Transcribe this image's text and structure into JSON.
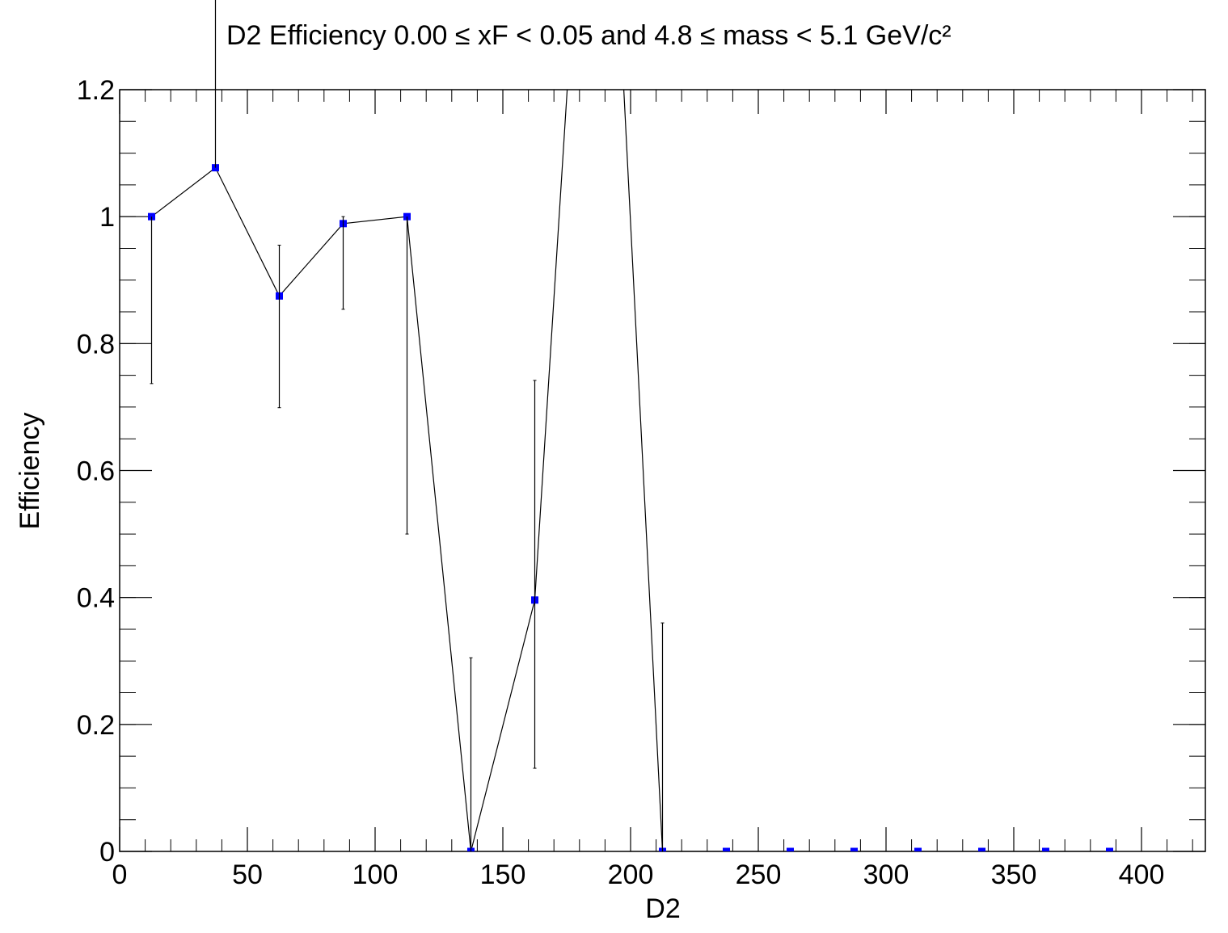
{
  "chart_data": {
    "type": "line",
    "title": "D2 Efficiency 0.00 ≤ xF < 0.05 and 4.8 ≤ mass < 5.1 GeV/c²",
    "x_label": "D2",
    "y_label": "Efficiency",
    "x": [
      12.5,
      37.5,
      62.5,
      87.5,
      112.5,
      137.5,
      162.5,
      187.5,
      212.5,
      237.5,
      262.5,
      287.5,
      312.5,
      337.5,
      362.5,
      387.5
    ],
    "series": [
      {
        "color": "#0000ff",
        "values": [
          1.0,
          1.077,
          0.875,
          0.989,
          1.0,
          0,
          0.396,
          1.98,
          0,
          0,
          0,
          0,
          0,
          0,
          0,
          0
        ],
        "errors_low": [
          0.263,
          0,
          0.176,
          0.135,
          0.5,
          0,
          0.265,
          0,
          0,
          0,
          0,
          0,
          0,
          0,
          0,
          0
        ],
        "errors_high": [
          0,
          0.3,
          0.08,
          0.011,
          0,
          0.305,
          0.346,
          0,
          0.36,
          0,
          0,
          0,
          0,
          0,
          0,
          0
        ]
      }
    ],
    "xlim": [
      0,
      425
    ],
    "xticks": [
      0,
      50,
      100,
      150,
      200,
      250,
      300,
      350,
      400
    ],
    "ylim": [
      0,
      1.2
    ],
    "yticks": [
      0,
      0.2,
      0.4,
      0.6,
      0.8,
      1,
      1.2
    ]
  }
}
